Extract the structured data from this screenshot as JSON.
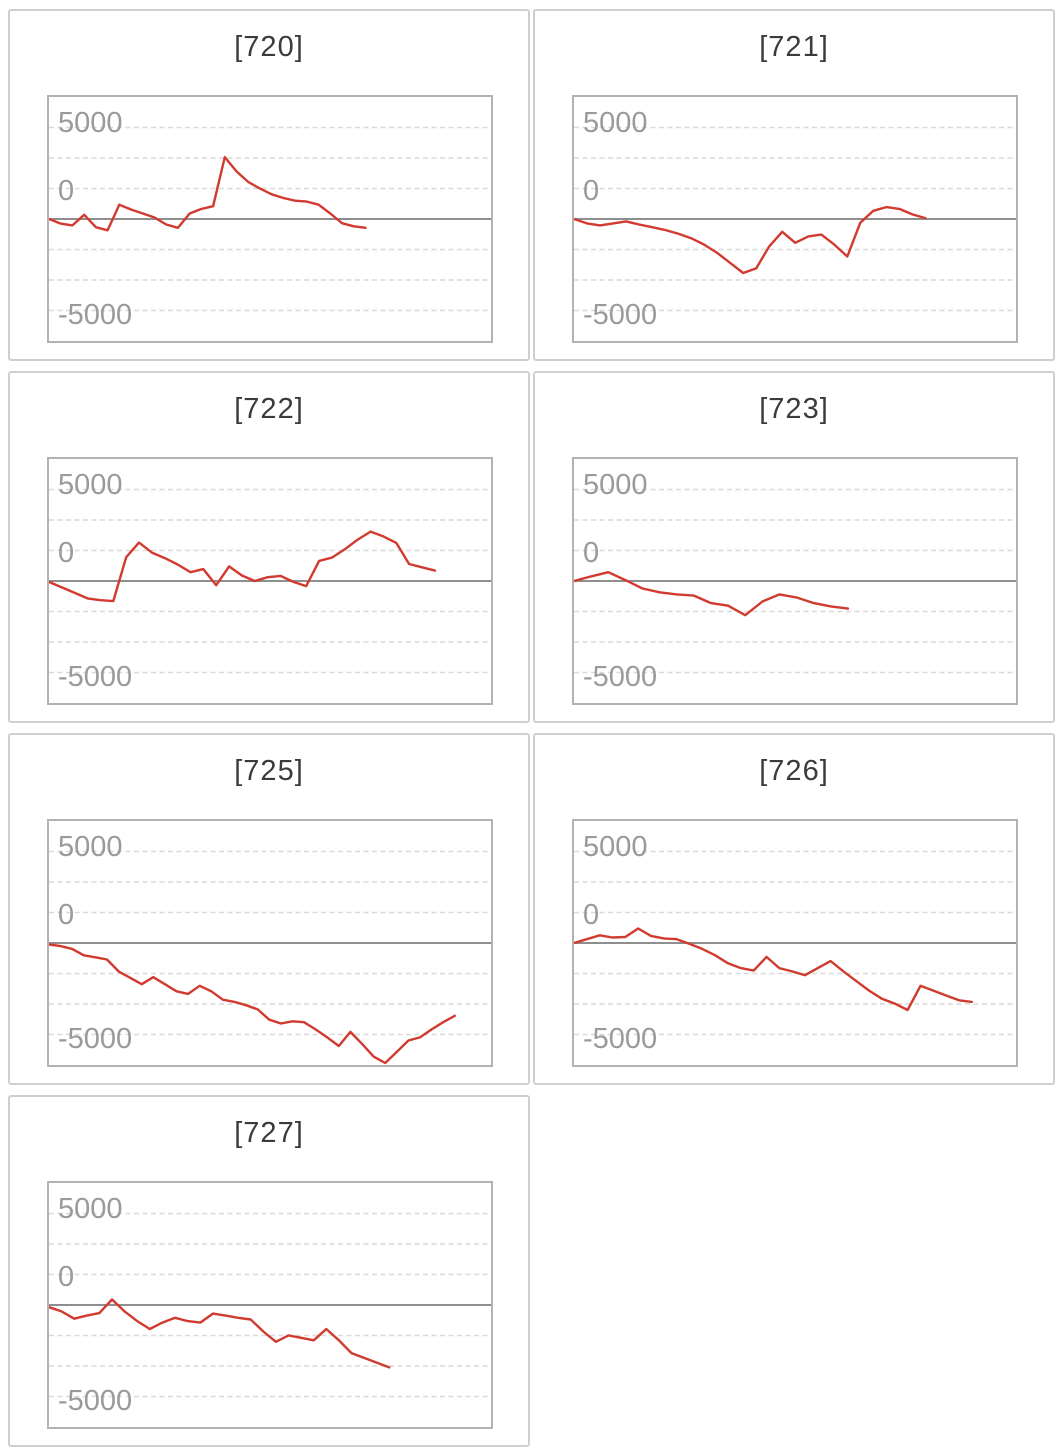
{
  "page": {
    "background_color": "#ffffff"
  },
  "style": {
    "series_color": "#d13a2f",
    "zero_line_color": "#8e8e8e",
    "gridline_color": "#d9d9d9",
    "plot_border_color": "#b2b2b2",
    "card_border_color": "#cfcfcf",
    "title_color": "#3b3b3b",
    "tick_label_color": "#9a9a9a"
  },
  "axis": {
    "tick_labels": [
      "5000",
      "0",
      "-5000"
    ],
    "tick_values": [
      5000,
      0,
      -5000
    ],
    "gridline_values": [
      5000,
      3333,
      1667,
      -1667,
      -3333,
      -5000
    ],
    "zero_line_value": 0,
    "y_range": [
      -6667,
      6667
    ],
    "grid_style": "dashed",
    "x_labels_shown": false
  },
  "chart_data": [
    {
      "title": "[720]",
      "type": "line",
      "y_ticks": [
        5000,
        0,
        -5000
      ],
      "y_range": [
        -6667,
        6667
      ],
      "x_end_fraction": 0.716,
      "values": [
        0,
        -250,
        -350,
        230,
        -450,
        -620,
        780,
        520,
        300,
        80,
        -300,
        -480,
        300,
        550,
        700,
        3380,
        2600,
        2020,
        1660,
        1350,
        1150,
        1000,
        950,
        780,
        300,
        -230,
        -400,
        -480
      ]
    },
    {
      "title": "[721]",
      "type": "line",
      "y_ticks": [
        5000,
        0,
        -5000
      ],
      "y_range": [
        -6667,
        6667
      ],
      "x_end_fraction": 0.795,
      "values": [
        0,
        -240,
        -350,
        -240,
        -130,
        -300,
        -450,
        -600,
        -800,
        -1050,
        -1400,
        -1850,
        -2400,
        -2950,
        -2700,
        -1500,
        -700,
        -1300,
        -950,
        -850,
        -1400,
        -2050,
        -200,
        450,
        650,
        550,
        250,
        50
      ]
    },
    {
      "title": "[722]",
      "type": "line",
      "y_ticks": [
        5000,
        0,
        -5000
      ],
      "y_range": [
        -6667,
        6667
      ],
      "x_end_fraction": 0.873,
      "values": [
        -50,
        -350,
        -650,
        -950,
        -1050,
        -1100,
        1300,
        2100,
        1550,
        1250,
        900,
        480,
        650,
        -230,
        800,
        300,
        0,
        210,
        280,
        -50,
        -280,
        1100,
        1280,
        1730,
        2260,
        2700,
        2440,
        2080,
        930,
        750,
        570
      ]
    },
    {
      "title": "[723]",
      "type": "line",
      "y_ticks": [
        5000,
        0,
        -5000
      ],
      "y_range": [
        -6667,
        6667
      ],
      "x_end_fraction": 0.62,
      "values": [
        0,
        250,
        480,
        50,
        -410,
        -620,
        -730,
        -800,
        -1210,
        -1350,
        -1870,
        -1120,
        -730,
        -900,
        -1210,
        -1390,
        -1510
      ]
    },
    {
      "title": "[725]",
      "type": "line",
      "y_ticks": [
        5000,
        0,
        -5000
      ],
      "y_range": [
        -6667,
        6667
      ],
      "x_end_fraction": 0.918,
      "values": [
        -80,
        -170,
        -320,
        -670,
        -780,
        -900,
        -1550,
        -1900,
        -2250,
        -1870,
        -2250,
        -2640,
        -2780,
        -2340,
        -2640,
        -3100,
        -3220,
        -3400,
        -3630,
        -4190,
        -4400,
        -4280,
        -4330,
        -4720,
        -5160,
        -5630,
        -4860,
        -5510,
        -6210,
        -6560,
        -5950,
        -5330,
        -5160,
        -4720,
        -4330,
        -3980
      ]
    },
    {
      "title": "[726]",
      "type": "line",
      "y_ticks": [
        5000,
        0,
        -5000
      ],
      "y_range": [
        -6667,
        6667
      ],
      "x_end_fraction": 0.9,
      "values": [
        0,
        210,
        420,
        300,
        330,
        790,
        390,
        250,
        210,
        -50,
        -320,
        -670,
        -1110,
        -1370,
        -1510,
        -760,
        -1370,
        -1550,
        -1760,
        -1370,
        -990,
        -1550,
        -2080,
        -2600,
        -3050,
        -3310,
        -3660,
        -2340,
        -2600,
        -2870,
        -3130,
        -3220
      ]
    },
    {
      "title": "[727]",
      "type": "line",
      "y_ticks": [
        5000,
        0,
        -5000
      ],
      "y_range": [
        -6667,
        6667
      ],
      "x_end_fraction": 0.77,
      "values": [
        -120,
        -350,
        -750,
        -580,
        -440,
        300,
        -350,
        -880,
        -1310,
        -960,
        -700,
        -880,
        -960,
        -470,
        -580,
        -700,
        -790,
        -1450,
        -2010,
        -1660,
        -1790,
        -1930,
        -1310,
        -1930,
        -2630,
        -2890,
        -3150,
        -3410
      ]
    }
  ]
}
